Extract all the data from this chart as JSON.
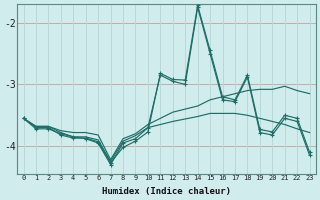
{
  "xlabel": "Humidex (Indice chaleur)",
  "bg_color": "#d0ecec",
  "grid_color_h": "#c8a8a8",
  "grid_color_v": "#b8d8d8",
  "line_color": "#1e6e68",
  "x_values": [
    0,
    1,
    2,
    3,
    4,
    5,
    6,
    7,
    8,
    9,
    10,
    11,
    12,
    13,
    14,
    15,
    16,
    17,
    18,
    19,
    20,
    21,
    22,
    23
  ],
  "line_trend1": [
    -3.55,
    -3.68,
    -3.68,
    -3.75,
    -3.78,
    -3.78,
    -3.82,
    -4.22,
    -3.88,
    -3.8,
    -3.65,
    -3.55,
    -3.45,
    -3.4,
    -3.35,
    -3.25,
    -3.2,
    -3.15,
    -3.1,
    -3.08,
    -3.08,
    -3.03,
    -3.1,
    -3.15
  ],
  "line_trend2": [
    -3.55,
    -3.68,
    -3.68,
    -3.78,
    -3.85,
    -3.85,
    -3.9,
    -4.25,
    -3.92,
    -3.83,
    -3.7,
    -3.65,
    -3.6,
    -3.56,
    -3.52,
    -3.47,
    -3.47,
    -3.47,
    -3.5,
    -3.55,
    -3.6,
    -3.65,
    -3.72,
    -3.78
  ],
  "line_jagged1": [
    -3.55,
    -3.72,
    -3.72,
    -3.8,
    -3.85,
    -3.88,
    -3.95,
    -4.3,
    -3.95,
    -3.88,
    -3.7,
    -2.85,
    -2.95,
    -3.0,
    -1.75,
    -2.5,
    -3.25,
    -3.28,
    -2.88,
    -3.78,
    -3.82,
    -3.55,
    -3.6,
    -4.15
  ],
  "line_jagged2": [
    -3.55,
    -3.7,
    -3.7,
    -3.82,
    -3.87,
    -3.87,
    -3.93,
    -4.27,
    -4.02,
    -3.92,
    -3.77,
    -2.82,
    -2.92,
    -2.93,
    -1.72,
    -2.45,
    -3.2,
    -3.25,
    -2.85,
    -3.73,
    -3.77,
    -3.5,
    -3.55,
    -4.1
  ],
  "ylim": [
    -4.45,
    -1.7
  ],
  "yticks": [
    -4.0,
    -3.0,
    -2.0
  ],
  "yticklabels": [
    "-4",
    "-3",
    "-2"
  ]
}
